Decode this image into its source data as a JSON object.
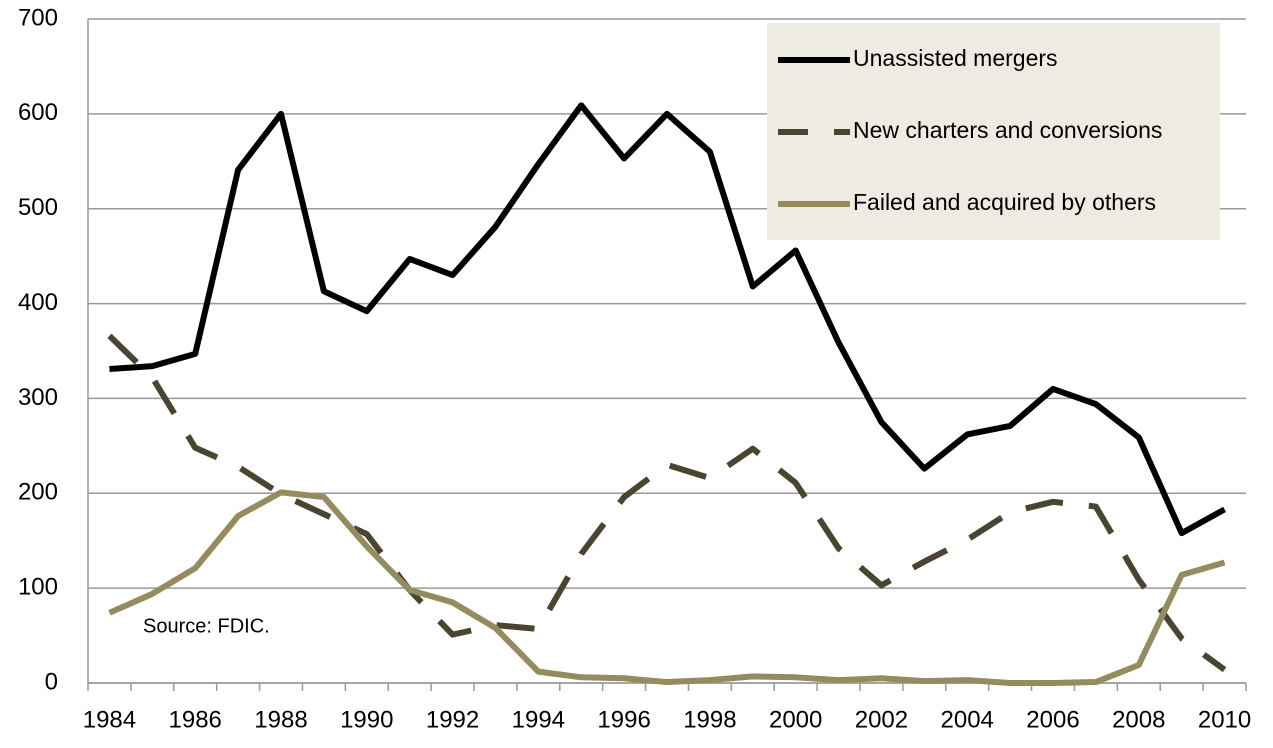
{
  "chart_data": {
    "type": "line",
    "categories": [
      "1984",
      null,
      "1986",
      null,
      "1988",
      null,
      "1990",
      null,
      "1992",
      null,
      "1994",
      null,
      "1996",
      null,
      "1998",
      null,
      "2000",
      null,
      "2002",
      null,
      "2004",
      null,
      "2006",
      null,
      "2008",
      null,
      "2010"
    ],
    "series": [
      {
        "name": "Unassisted mergers",
        "color": "#000000",
        "dash": "solid",
        "values": [
          331,
          334,
          347,
          541,
          600,
          413,
          392,
          447,
          430,
          481,
          547,
          609,
          553,
          600,
          560,
          418,
          456,
          359,
          275,
          226,
          262,
          271,
          310,
          294,
          259,
          158,
          183
        ]
      },
      {
        "name": "New charters and conversions",
        "color": "#4a4530",
        "dash": "dashed",
        "values": [
          366,
          322,
          248,
          228,
          199,
          178,
          157,
          98,
          51,
          61,
          57,
          136,
          196,
          230,
          216,
          247,
          211,
          142,
          103,
          128,
          151,
          180,
          191,
          186,
          109,
          47,
          14
        ]
      },
      {
        "name": "Failed and acquired by others",
        "color": "#958b5e",
        "dash": "solid",
        "values": [
          74,
          94,
          121,
          176,
          201,
          196,
          144,
          98,
          85,
          58,
          12,
          6,
          5,
          1,
          3,
          7,
          6,
          3,
          5,
          2,
          3,
          0,
          0,
          1,
          19,
          114,
          127
        ]
      }
    ],
    "ylim": [
      0,
      700
    ],
    "yticks": [
      0,
      100,
      200,
      300,
      400,
      500,
      600,
      700
    ],
    "grid": true,
    "legend": "top-right",
    "annotations": [
      "Source: FDIC."
    ]
  }
}
